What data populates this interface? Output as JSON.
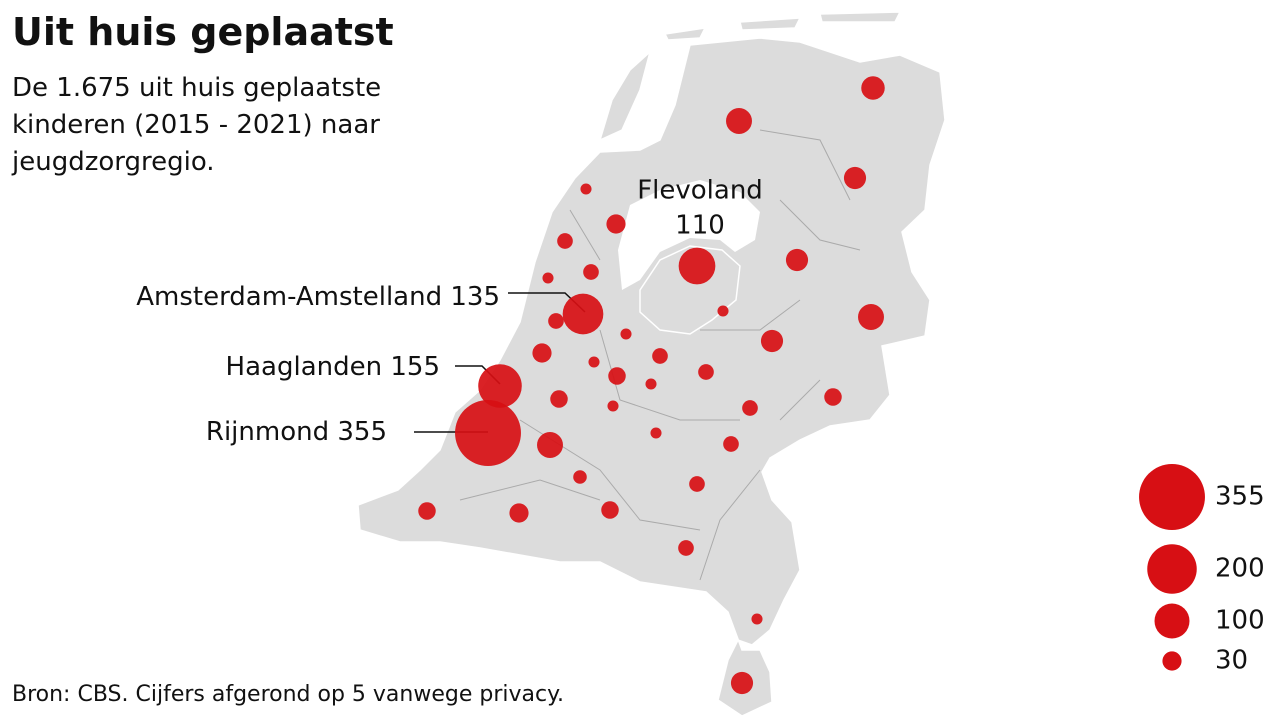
{
  "title": "Uit huis geplaatst",
  "subtitle": "De 1.675 uit huis geplaatste kinderen (2015 - 2021) naar jeugdzorgregio.",
  "source": "Bron: CBS. Cijfers afgerond op 5 vanwege privacy.",
  "labeled_regions": [
    {
      "name": "Flevoland",
      "value": 110
    },
    {
      "name": "Amsterdam-Amstelland",
      "value": 135
    },
    {
      "name": "Haaglanden",
      "value": 155
    },
    {
      "name": "Rijnmond",
      "value": 355
    }
  ],
  "other_regions": [
    45,
    55,
    40,
    10,
    30,
    20,
    40,
    20,
    10,
    55,
    20,
    10,
    10,
    40,
    30,
    20,
    10,
    20,
    25,
    10,
    25,
    10,
    20,
    25,
    10,
    55,
    20,
    15,
    20,
    25,
    30,
    25,
    20,
    10,
    40
  ],
  "legend": {
    "values": [
      355,
      200,
      100,
      30
    ]
  },
  "color": "#d70f14"
}
